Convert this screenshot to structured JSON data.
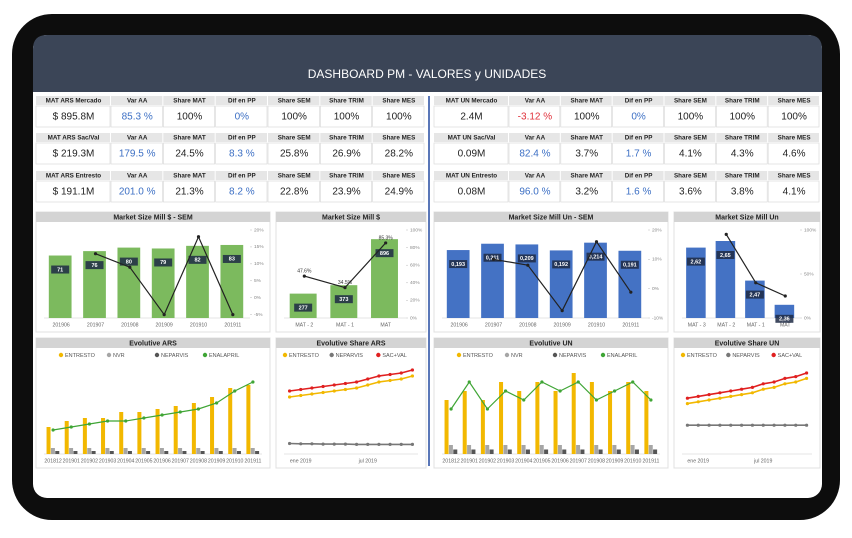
{
  "header": {
    "title": "DASHBOARD PM - VALORES y UNIDADES"
  },
  "kpi_tables": [
    {
      "blocks": [
        {
          "headers": [
            "MAT ARS Mercado",
            "Var AA",
            "Share MAT",
            "Dif en PP",
            "Share SEM",
            "Share TRIM",
            "Share MES"
          ],
          "values": [
            "$ 895.8M",
            "85.3 %",
            "100%",
            "0%",
            "100%",
            "100%",
            "100%"
          ]
        },
        {
          "headers": [
            "MAT ARS Sac/Val",
            "Var AA",
            "Share MAT",
            "Dif en PP",
            "Share SEM",
            "Share TRIM",
            "Share MES"
          ],
          "values": [
            "$ 219.3M",
            "179.5 %",
            "24.5%",
            "8.3 %",
            "25.8%",
            "26.9%",
            "28.2%"
          ]
        },
        {
          "headers": [
            "MAT ARS Entresto",
            "Var AA",
            "Share MAT",
            "Dif en PP",
            "Share SEM",
            "Share TRIM",
            "Share MES"
          ],
          "values": [
            "$ 191.1M",
            "201.0 %",
            "21.3%",
            "8.2 %",
            "22.8%",
            "23.9%",
            "24.9%"
          ]
        }
      ]
    },
    {
      "blocks": [
        {
          "headers": [
            "MAT UN Mercado",
            "Var AA",
            "Share MAT",
            "Dif en PP",
            "Share SEM",
            "Share TRIM",
            "Share MES"
          ],
          "values": [
            "2.4M",
            "-3.12 %",
            "100%",
            "0%",
            "100%",
            "100%",
            "100%"
          ]
        },
        {
          "headers": [
            "MAT UN Sac/Val",
            "Var AA",
            "Share MAT",
            "Dif en PP",
            "Share SEM",
            "Share TRIM",
            "Share MES"
          ],
          "values": [
            "0.09M",
            "82.4 %",
            "3.7%",
            "1.7 %",
            "4.1%",
            "4.3%",
            "4.6%"
          ]
        },
        {
          "headers": [
            "MAT UN Entresto",
            "Var AA",
            "Share MAT",
            "Dif en PP",
            "Share SEM",
            "Share TRIM",
            "Share MES"
          ],
          "values": [
            "0.08M",
            "96.0 %",
            "3.2%",
            "1.6 %",
            "3.6%",
            "3.8%",
            "4.1%"
          ]
        }
      ]
    }
  ],
  "chart_data": [
    {
      "type": "bar",
      "title": "Market Size Mill $ - SEM",
      "categories": [
        "201906",
        "201907",
        "201908",
        "201909",
        "201910",
        "201911"
      ],
      "ylim": [
        0,
        100
      ],
      "y2lim": [
        -6,
        20
      ],
      "y2ticks": [
        {
          "value": -5,
          "label": "-5%"
        },
        {
          "value": 0,
          "label": "0%"
        },
        {
          "value": 5,
          "label": "5%"
        },
        {
          "value": 10,
          "label": "10%"
        },
        {
          "value": 15,
          "label": "15%"
        },
        {
          "value": 20,
          "label": "20%"
        }
      ],
      "series": [
        {
          "type": "bar",
          "color": "#7cba5e",
          "values": [
            71,
            76,
            80,
            79,
            82,
            83
          ]
        },
        {
          "type": "line",
          "axis": "y2",
          "color": "#222222",
          "values": [
            null,
            13,
            9,
            -5,
            18,
            -5
          ]
        }
      ]
    },
    {
      "type": "bar",
      "title": "Market Size Mill $",
      "categories": [
        "MAT - 2",
        "MAT - 1",
        "MAT"
      ],
      "ylim": [
        0,
        1000
      ],
      "y2lim": [
        0,
        100
      ],
      "y2ticks": [
        {
          "value": 0,
          "label": "0%"
        },
        {
          "value": 20,
          "label": "20%"
        },
        {
          "value": 40,
          "label": "40%"
        },
        {
          "value": 60,
          "label": "60%"
        },
        {
          "value": 80,
          "label": "80%"
        },
        {
          "value": 100,
          "label": "100%"
        }
      ],
      "series": [
        {
          "type": "bar",
          "color": "#7cba5e",
          "values": [
            277,
            373,
            896
          ]
        },
        {
          "type": "line",
          "axis": "y2",
          "color": "#222222",
          "values": [
            47.6,
            34.5,
            85.3
          ],
          "value_labels": [
            "47.6%",
            "34.5%",
            "85.3%"
          ]
        }
      ]
    },
    {
      "type": "bar",
      "title": "Market Size Mill Un - SEM",
      "categories": [
        "201906",
        "201907",
        "201908",
        "201909",
        "201910",
        "201911"
      ],
      "ylim": [
        0,
        0.25
      ],
      "y2lim": [
        -10,
        20
      ],
      "y2ticks": [
        {
          "value": -10,
          "label": "-10%"
        },
        {
          "value": 0,
          "label": "0%"
        },
        {
          "value": 10,
          "label": "10%"
        },
        {
          "value": 20,
          "label": "20%"
        }
      ],
      "series": [
        {
          "type": "bar",
          "color": "#4472c4",
          "values": [
            0.193,
            0.211,
            0.209,
            0.192,
            0.214,
            0.191
          ],
          "value_labels": [
            "0,193",
            "0,211",
            "0,209",
            "0,192",
            "0,214",
            "0,191"
          ]
        },
        {
          "type": "line",
          "axis": "y2",
          "color": "#222222",
          "values": [
            null,
            10,
            8,
            -7.5,
            16,
            -1.2
          ]
        }
      ]
    },
    {
      "type": "bar",
      "title": "Market Size Mill Un",
      "categories": [
        "MAT - 3",
        "MAT - 2",
        "MAT - 1",
        "MAT"
      ],
      "ylim": [
        2.3,
        2.7
      ],
      "y2lim": [
        0,
        100
      ],
      "y2ticks": [
        {
          "value": 0,
          "label": "0%"
        },
        {
          "value": 50,
          "label": "50%"
        },
        {
          "value": 100,
          "label": "100%"
        }
      ],
      "series": [
        {
          "type": "bar",
          "color": "#4472c4",
          "values": [
            2.62,
            2.65,
            2.47,
            2.36
          ],
          "value_labels": [
            "2,62",
            "2,65",
            "2,47",
            "2,36"
          ]
        },
        {
          "type": "line",
          "axis": "y2",
          "color": "#222222",
          "values": [
            null,
            95,
            40,
            25
          ]
        }
      ]
    },
    {
      "type": "bar",
      "title": "Evolutive ARS",
      "categories": [
        "201812",
        "201901",
        "201902",
        "201903",
        "201904",
        "201905",
        "201906",
        "201907",
        "201908",
        "201909",
        "201910",
        "201911"
      ],
      "ylim": [
        0,
        30
      ],
      "series": [
        {
          "type": "bar",
          "name": "ENTRESTO",
          "color": "#f2b800",
          "values": [
            9,
            11,
            12,
            12,
            14,
            14,
            15,
            16,
            17,
            19,
            22,
            23
          ]
        },
        {
          "type": "bar",
          "name": "NVR",
          "color": "#a6a6a6",
          "values": [
            2,
            2,
            2,
            2,
            2,
            2,
            2,
            2,
            2,
            2,
            2,
            2
          ]
        },
        {
          "type": "bar",
          "name": "NEPARVIS",
          "color": "#555555",
          "values": [
            1,
            1,
            1,
            1,
            1,
            1,
            1,
            1,
            1,
            1,
            1,
            1
          ]
        },
        {
          "type": "line",
          "name": "ENALAPRIL",
          "color": "#3fa535",
          "values": [
            8,
            9,
            10,
            11,
            11,
            12,
            13,
            14,
            15,
            17,
            21,
            24
          ]
        }
      ]
    },
    {
      "type": "line",
      "title": "Evolutive Share ARS",
      "categories": [
        null,
        "ene 2019",
        null,
        null,
        null,
        null,
        null,
        "jul 2019",
        null,
        null,
        null,
        null
      ],
      "ylim": [
        0,
        30
      ],
      "series": [
        {
          "name": "ENTRESTO",
          "color": "#f2b800",
          "values": [
            19,
            19.5,
            20,
            20.5,
            21,
            21.5,
            22,
            23,
            24,
            24.5,
            25,
            26
          ]
        },
        {
          "name": "NEPARVIS",
          "color": "#777777",
          "values": [
            3.5,
            3.4,
            3.4,
            3.3,
            3.3,
            3.3,
            3.2,
            3.2,
            3.2,
            3.2,
            3.2,
            3.2
          ]
        },
        {
          "name": "SAC+VAL",
          "color": "#e02020",
          "values": [
            21,
            21.5,
            22,
            22.5,
            23,
            23.5,
            24,
            25,
            26,
            26.5,
            27,
            28
          ]
        }
      ]
    },
    {
      "type": "bar",
      "title": "Evolutive UN",
      "categories": [
        "201812",
        "201901",
        "201902",
        "201903",
        "201904",
        "201905",
        "201906",
        "201907",
        "201908",
        "201909",
        "201910",
        "201911"
      ],
      "ylim": [
        0,
        10
      ],
      "series": [
        {
          "type": "bar",
          "name": "ENTRESTO",
          "color": "#f2b800",
          "values": [
            6,
            7,
            6,
            8,
            7,
            8,
            7,
            9,
            8,
            7,
            8,
            7
          ]
        },
        {
          "type": "bar",
          "name": "NVR",
          "color": "#a6a6a6",
          "values": [
            1,
            1,
            1,
            1,
            1,
            1,
            1,
            1,
            1,
            1,
            1,
            1
          ]
        },
        {
          "type": "bar",
          "name": "NEPARVIS",
          "color": "#555555",
          "values": [
            0.5,
            0.5,
            0.5,
            0.5,
            0.5,
            0.5,
            0.5,
            0.5,
            0.5,
            0.5,
            0.5,
            0.5
          ]
        },
        {
          "type": "line",
          "name": "ENALAPRIL",
          "color": "#3fa535",
          "values": [
            5,
            8,
            5,
            7,
            6,
            8,
            7,
            8,
            6,
            7,
            8,
            6
          ]
        }
      ]
    },
    {
      "type": "line",
      "title": "Evolutive Share UN",
      "categories": [
        null,
        "ene 2019",
        null,
        null,
        null,
        null,
        null,
        "jul 2019",
        null,
        null,
        null,
        null
      ],
      "ylim": [
        0,
        5
      ],
      "series": [
        {
          "name": "ENTRESTO",
          "color": "#f2b800",
          "values": [
            2.8,
            2.9,
            3.0,
            3.1,
            3.2,
            3.3,
            3.4,
            3.6,
            3.7,
            3.9,
            4.0,
            4.2
          ]
        },
        {
          "name": "NEPARVIS",
          "color": "#777777",
          "values": [
            1.6,
            1.6,
            1.6,
            1.6,
            1.6,
            1.6,
            1.6,
            1.6,
            1.6,
            1.6,
            1.6,
            1.6
          ]
        },
        {
          "name": "SAC+VAL",
          "color": "#e02020",
          "values": [
            3.1,
            3.2,
            3.3,
            3.4,
            3.5,
            3.6,
            3.7,
            3.9,
            4.0,
            4.2,
            4.3,
            4.5
          ]
        }
      ]
    }
  ]
}
